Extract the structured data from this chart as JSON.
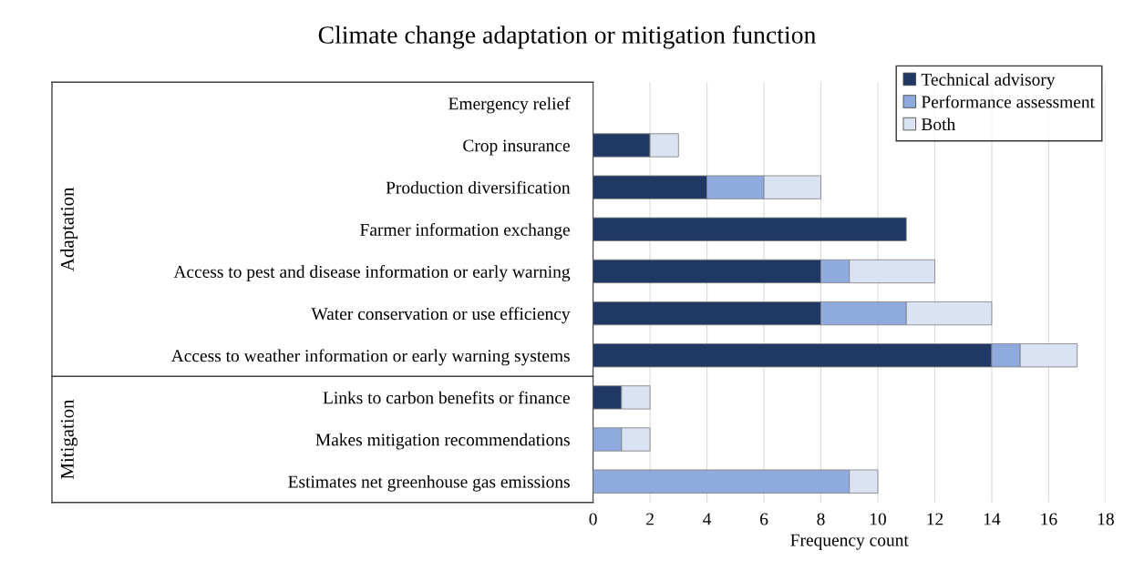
{
  "chart_data": {
    "type": "bar",
    "orientation": "horizontal",
    "stacked": true,
    "title": "Climate change adaptation or mitigation function",
    "xlabel": "Frequency count",
    "categories": [
      "Emergency relief",
      "Crop insurance",
      "Production diversification",
      "Farmer information exchange",
      "Access to pest and disease information or early warning",
      "Water conservation or use efficiency",
      "Access to weather information or early warning systems",
      "Links to carbon benefits or finance",
      "Makes mitigation recommendations",
      "Estimates net greenhouse gas emissions"
    ],
    "series": [
      {
        "name": "Technical advisory",
        "color": "#203864",
        "values": [
          0,
          2,
          4,
          11,
          8,
          8,
          14,
          1,
          0,
          0
        ]
      },
      {
        "name": "Performance assessment",
        "color": "#8faadc",
        "values": [
          0,
          0,
          2,
          0,
          1,
          3,
          1,
          0,
          1,
          9
        ]
      },
      {
        "name": "Both",
        "color": "#dae3f3",
        "values": [
          0,
          1,
          2,
          0,
          3,
          3,
          2,
          1,
          1,
          1
        ]
      }
    ],
    "xlim": [
      0,
      18
    ],
    "xticks": [
      0,
      2,
      4,
      6,
      8,
      10,
      12,
      14,
      16,
      18
    ],
    "grid": "x",
    "legend": "top right",
    "annotations": [
      "Adaptation",
      "Mitigation"
    ]
  }
}
